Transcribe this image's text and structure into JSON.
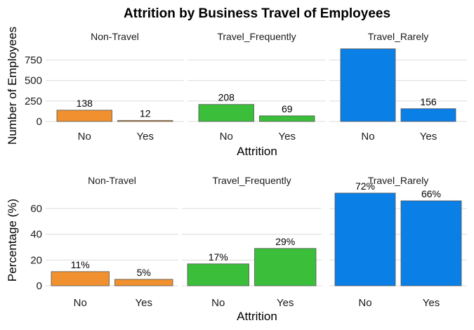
{
  "title": "Attrition by Business Travel of Employees",
  "chart_data": [
    {
      "type": "bar",
      "ylabel": "Number of Employees",
      "xlabel": "Attrition",
      "ylim": [
        0,
        900
      ],
      "yticks": [
        0,
        250,
        500,
        750
      ],
      "categories": [
        "No",
        "Yes"
      ],
      "facets": [
        {
          "name": "Non-Travel",
          "color": "#F0902E",
          "values": [
            138,
            12
          ],
          "labels": [
            "138",
            "12"
          ]
        },
        {
          "name": "Travel_Frequently",
          "color": "#3BBF3B",
          "values": [
            208,
            69
          ],
          "labels": [
            "208",
            "69"
          ]
        },
        {
          "name": "Travel_Rarely",
          "color": "#0A7FE5",
          "values": [
            887,
            156
          ],
          "labels": [
            "",
            "156"
          ]
        }
      ]
    },
    {
      "type": "bar",
      "ylabel": "Percentage (%)",
      "xlabel": "Attrition",
      "ylim": [
        0,
        72
      ],
      "yticks": [
        0,
        20,
        40,
        60
      ],
      "categories": [
        "No",
        "Yes"
      ],
      "facets": [
        {
          "name": "Non-Travel",
          "color": "#F0902E",
          "values": [
            11,
            5
          ],
          "labels": [
            "11%",
            "5%"
          ]
        },
        {
          "name": "Travel_Frequently",
          "color": "#3BBF3B",
          "values": [
            17,
            29
          ],
          "labels": [
            "17%",
            "29%"
          ]
        },
        {
          "name": "Travel_Rarely",
          "color": "#0A7FE5",
          "values": [
            72,
            66
          ],
          "labels": [
            "72%",
            "66%"
          ]
        }
      ]
    }
  ]
}
